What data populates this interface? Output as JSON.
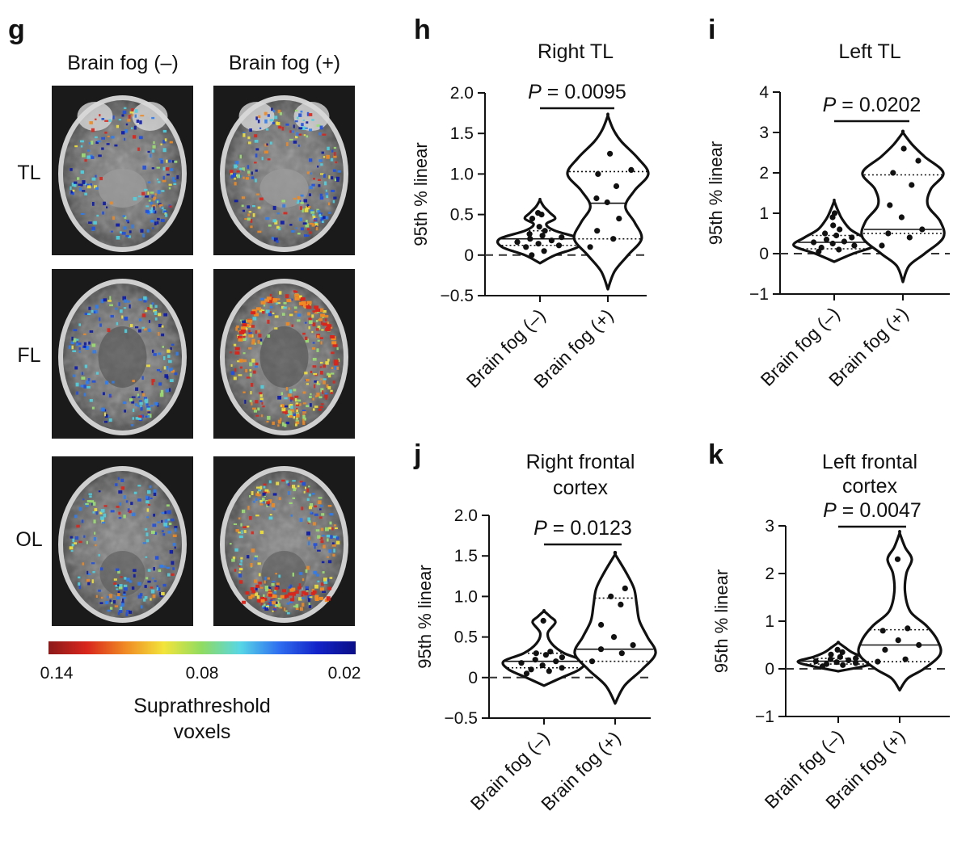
{
  "panel_g": {
    "letter": "g",
    "col_headers": [
      "Brain fog (–)",
      "Brain fog (+)"
    ],
    "row_labels": [
      "TL",
      "FL",
      "OL"
    ],
    "colorbar": {
      "ticks": [
        "0.14",
        "0.08",
        "0.02"
      ],
      "title_lines": [
        "Suprathreshold",
        "voxels"
      ],
      "colors": [
        "#8b1a1a",
        "#d9261c",
        "#f08a24",
        "#f3e43a",
        "#8fdc62",
        "#57d6e6",
        "#2f6ff0",
        "#1222c8",
        "#0a0e86"
      ]
    }
  },
  "chart_data": [
    {
      "type": "violin",
      "panel": "h",
      "title_lines": [
        "Right TL"
      ],
      "ylabel": "95th % linear",
      "ylim": [
        -0.5,
        2.0
      ],
      "yticks": [
        -0.5,
        0,
        0.5,
        1.0,
        1.5,
        2.0
      ],
      "ytick_labels": [
        "−0.5",
        "0",
        "0.5",
        "1.0",
        "1.5",
        "2.0"
      ],
      "categories": [
        "Brain fog (–)",
        "Brain fog (+)"
      ],
      "p_value": "= 0.0095",
      "groups": [
        {
          "name": "Brain fog (–)",
          "median": 0.2,
          "q1": 0.12,
          "q3": 0.3,
          "profile": [
            [
              -0.1,
              0
            ],
            [
              0.0,
              0.12
            ],
            [
              0.1,
              0.3
            ],
            [
              0.2,
              0.32
            ],
            [
              0.3,
              0.12
            ],
            [
              0.38,
              0.05
            ],
            [
              0.45,
              0.12
            ],
            [
              0.52,
              0.08
            ],
            [
              0.6,
              0.03
            ],
            [
              0.68,
              0
            ]
          ],
          "points": [
            0.0,
            0.05,
            0.1,
            0.12,
            0.14,
            0.16,
            0.18,
            0.2,
            0.22,
            0.24,
            0.26,
            0.3,
            0.35,
            0.45,
            0.5,
            0.52
          ]
        },
        {
          "name": "Brain fog (+)",
          "median": 0.64,
          "q1": 0.2,
          "q3": 1.03,
          "profile": [
            [
              -0.42,
              0
            ],
            [
              -0.2,
              0.05
            ],
            [
              0.0,
              0.15
            ],
            [
              0.2,
              0.25
            ],
            [
              0.4,
              0.2
            ],
            [
              0.6,
              0.13
            ],
            [
              0.8,
              0.2
            ],
            [
              1.0,
              0.3
            ],
            [
              1.2,
              0.22
            ],
            [
              1.4,
              0.1
            ],
            [
              1.55,
              0.04
            ],
            [
              1.72,
              0
            ]
          ],
          "points": [
            0.1,
            0.2,
            0.3,
            0.45,
            0.65,
            0.7,
            0.85,
            1.0,
            1.05,
            1.25
          ]
        }
      ]
    },
    {
      "type": "violin",
      "panel": "i",
      "title_lines": [
        "Left TL"
      ],
      "ylabel": "95th % linear",
      "ylim": [
        -1,
        4
      ],
      "yticks": [
        -1,
        0,
        1,
        2,
        3,
        4
      ],
      "ytick_labels": [
        "−1",
        "0",
        "1",
        "2",
        "3",
        "4"
      ],
      "categories": [
        "Brain fog (–)",
        "Brain fog (+)"
      ],
      "p_value": "= 0.0202",
      "groups": [
        {
          "name": "Brain fog (–)",
          "median": 0.28,
          "q1": 0.12,
          "q3": 0.45,
          "profile": [
            [
              -0.2,
              0
            ],
            [
              0.0,
              0.14
            ],
            [
              0.2,
              0.3
            ],
            [
              0.4,
              0.22
            ],
            [
              0.6,
              0.12
            ],
            [
              0.85,
              0.06
            ],
            [
              1.05,
              0.03
            ],
            [
              1.3,
              0
            ]
          ],
          "points": [
            0.05,
            0.1,
            0.15,
            0.2,
            0.25,
            0.28,
            0.3,
            0.35,
            0.4,
            0.45,
            0.5,
            0.6,
            0.7,
            0.9,
            1.0
          ]
        },
        {
          "name": "Brain fog (+)",
          "median": 0.6,
          "q1": 0.5,
          "q3": 1.95,
          "profile": [
            [
              -0.7,
              0
            ],
            [
              -0.3,
              0.04
            ],
            [
              0.0,
              0.14
            ],
            [
              0.4,
              0.26
            ],
            [
              0.8,
              0.24
            ],
            [
              1.2,
              0.16
            ],
            [
              1.6,
              0.18
            ],
            [
              2.0,
              0.26
            ],
            [
              2.4,
              0.14
            ],
            [
              2.7,
              0.06
            ],
            [
              3.0,
              0
            ]
          ],
          "points": [
            0.2,
            0.4,
            0.5,
            0.6,
            0.9,
            1.2,
            1.7,
            2.0,
            2.3,
            2.6
          ]
        }
      ]
    },
    {
      "type": "violin",
      "panel": "j",
      "title_lines": [
        "Right frontal",
        "cortex"
      ],
      "ylabel": "95th % linear",
      "ylim": [
        -0.5,
        2.0
      ],
      "yticks": [
        -0.5,
        0,
        0.5,
        1.0,
        1.5,
        2.0
      ],
      "ytick_labels": [
        "−0.5",
        "0",
        "0.5",
        "1.0",
        "1.5",
        "2.0"
      ],
      "categories": [
        "Brain fog (–)",
        "Brain fog (+)"
      ],
      "p_value": "= 0.0123",
      "groups": [
        {
          "name": "Brain fog (–)",
          "median": 0.2,
          "q1": 0.12,
          "q3": 0.3,
          "profile": [
            [
              -0.1,
              0
            ],
            [
              0.0,
              0.14
            ],
            [
              0.1,
              0.28
            ],
            [
              0.2,
              0.32
            ],
            [
              0.3,
              0.16
            ],
            [
              0.42,
              0.06
            ],
            [
              0.55,
              0.03
            ],
            [
              0.68,
              0.09
            ],
            [
              0.75,
              0.05
            ],
            [
              0.82,
              0
            ]
          ],
          "points": [
            0.05,
            0.08,
            0.1,
            0.12,
            0.15,
            0.18,
            0.2,
            0.22,
            0.25,
            0.28,
            0.3,
            0.32,
            0.7
          ]
        },
        {
          "name": "Brain fog (+)",
          "median": 0.35,
          "q1": 0.2,
          "q3": 0.98,
          "profile": [
            [
              -0.32,
              0
            ],
            [
              -0.1,
              0.07
            ],
            [
              0.1,
              0.2
            ],
            [
              0.3,
              0.3
            ],
            [
              0.5,
              0.24
            ],
            [
              0.7,
              0.18
            ],
            [
              0.9,
              0.16
            ],
            [
              1.1,
              0.14
            ],
            [
              1.3,
              0.08
            ],
            [
              1.52,
              0
            ]
          ],
          "points": [
            0.2,
            0.3,
            0.35,
            0.4,
            0.5,
            0.65,
            0.9,
            1.0,
            1.1
          ]
        }
      ]
    },
    {
      "type": "violin",
      "panel": "k",
      "title_lines": [
        "Left frontal",
        "cortex"
      ],
      "ylabel": "95th % linear",
      "ylim": [
        -1,
        3
      ],
      "yticks": [
        -1,
        0,
        1,
        2,
        3
      ],
      "ytick_labels": [
        "−1",
        "0",
        "1",
        "2",
        "3"
      ],
      "categories": [
        "Brain fog (–)",
        "Brain fog (+)"
      ],
      "p_value": "= 0.0047",
      "groups": [
        {
          "name": "Brain fog (–)",
          "median": 0.16,
          "q1": 0.1,
          "q3": 0.22,
          "profile": [
            [
              -0.05,
              0
            ],
            [
              0.05,
              0.22
            ],
            [
              0.15,
              0.36
            ],
            [
              0.25,
              0.22
            ],
            [
              0.35,
              0.12
            ],
            [
              0.45,
              0.06
            ],
            [
              0.55,
              0
            ]
          ],
          "points": [
            0.05,
            0.08,
            0.1,
            0.12,
            0.14,
            0.16,
            0.18,
            0.2,
            0.22,
            0.25,
            0.3,
            0.35,
            0.4
          ]
        },
        {
          "name": "Brain fog (+)",
          "median": 0.5,
          "q1": 0.15,
          "q3": 0.82,
          "profile": [
            [
              -0.45,
              0
            ],
            [
              -0.2,
              0.06
            ],
            [
              0.0,
              0.18
            ],
            [
              0.3,
              0.3
            ],
            [
              0.6,
              0.28
            ],
            [
              0.9,
              0.2
            ],
            [
              1.2,
              0.08
            ],
            [
              1.6,
              0.04
            ],
            [
              2.0,
              0.05
            ],
            [
              2.3,
              0.09
            ],
            [
              2.55,
              0.04
            ],
            [
              2.85,
              0
            ]
          ],
          "points": [
            0.15,
            0.2,
            0.4,
            0.5,
            0.6,
            0.8,
            0.85,
            2.3
          ]
        }
      ]
    }
  ]
}
